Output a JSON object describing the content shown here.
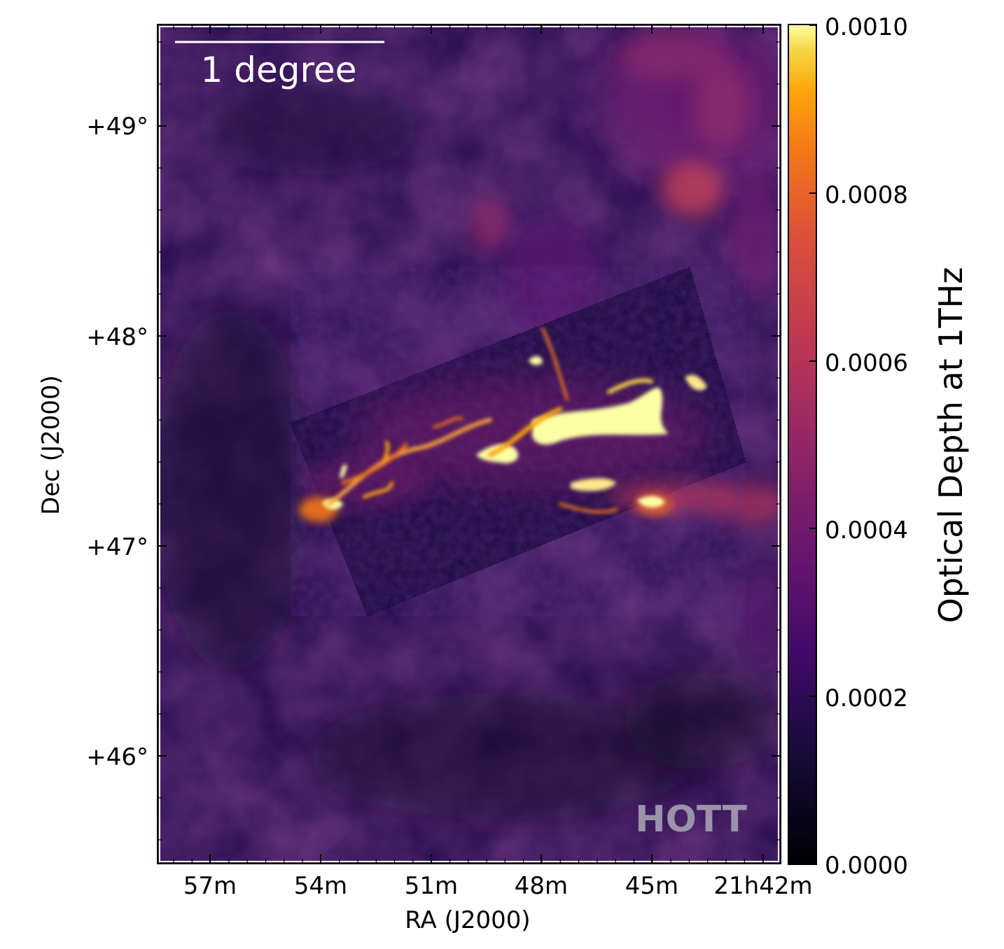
{
  "image": {
    "description_kind": "astronomical optical depth map",
    "colormap": "inferno"
  },
  "axes": {
    "xlabel": "RA (J2000)",
    "ylabel": "Dec (J2000)",
    "x_ticks": [
      "57m",
      "54m",
      "51m",
      "48m",
      "45m",
      "21h42m"
    ],
    "y_ticks": [
      "+49°",
      "+48°",
      "+47°",
      "+46°"
    ]
  },
  "colorbar": {
    "label": "Optical Depth at 1THz",
    "ticks": [
      "0.0010",
      "0.0008",
      "0.0006",
      "0.0004",
      "0.0002",
      "0.0000"
    ],
    "range": [
      0.0,
      0.001
    ]
  },
  "scalebar": {
    "label": "1 degree"
  },
  "watermark": {
    "text": "HOTT"
  }
}
